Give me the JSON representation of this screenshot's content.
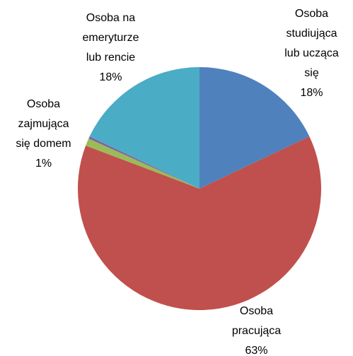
{
  "chart_data": {
    "type": "pie",
    "categories": [
      "Osoba studiująca lub ucząca się",
      "Osoba pracująca",
      "Osoba zajmująca się domem",
      null,
      "Osoba na emeryturze lub rencie"
    ],
    "values": [
      18,
      63,
      1,
      0.3,
      18
    ],
    "value_labels": [
      "18%",
      "63%",
      "1%",
      null,
      "18%"
    ],
    "colors": [
      "#4f81bd",
      "#c0504d",
      "#9bbb59",
      "#8064a2",
      "#4bacc6"
    ]
  }
}
